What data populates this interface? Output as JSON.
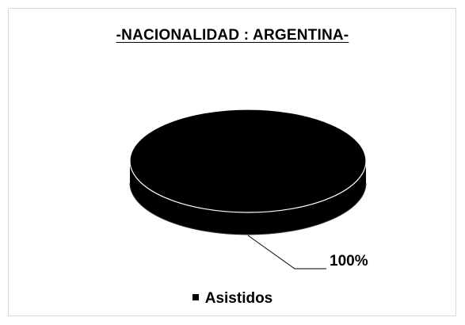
{
  "chart_data": {
    "type": "pie",
    "title": "-NACIONALIDAD : ARGENTINA-",
    "categories": [
      "Asistidos"
    ],
    "values": [
      100
    ],
    "data_labels": [
      "100%"
    ],
    "legend": {
      "entries": [
        "Asistidos"
      ],
      "placement": "bottom"
    },
    "colors": {
      "slice": "#000000",
      "edge": "#ffffff",
      "leader_line": "#000000"
    },
    "style": "3d"
  }
}
